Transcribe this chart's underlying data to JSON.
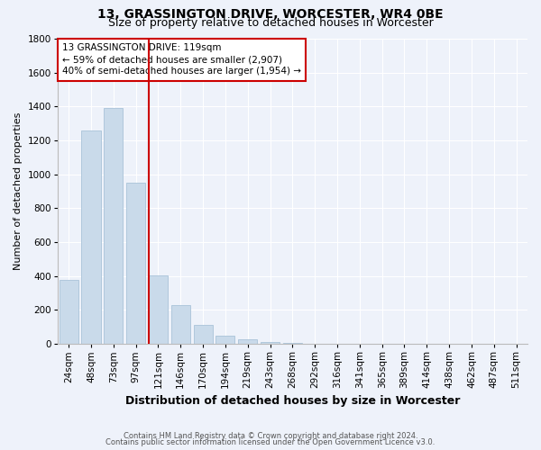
{
  "title": "13, GRASSINGTON DRIVE, WORCESTER, WR4 0BE",
  "subtitle": "Size of property relative to detached houses in Worcester",
  "xlabel": "Distribution of detached houses by size in Worcester",
  "ylabel": "Number of detached properties",
  "footnote1": "Contains HM Land Registry data © Crown copyright and database right 2024.",
  "footnote2": "Contains public sector information licensed under the Open Government Licence v3.0.",
  "categories": [
    "24sqm",
    "48sqm",
    "73sqm",
    "97sqm",
    "121sqm",
    "146sqm",
    "170sqm",
    "194sqm",
    "219sqm",
    "243sqm",
    "268sqm",
    "292sqm",
    "316sqm",
    "341sqm",
    "365sqm",
    "389sqm",
    "414sqm",
    "438sqm",
    "462sqm",
    "487sqm",
    "511sqm"
  ],
  "values": [
    375,
    1260,
    1390,
    950,
    405,
    230,
    110,
    50,
    25,
    10,
    5,
    2,
    1,
    1,
    0,
    0,
    0,
    0,
    0,
    0,
    0
  ],
  "bar_color": "#c9daea",
  "bar_edge_color": "#b0c8dc",
  "marker_label": "13 GRASSINGTON DRIVE: 119sqm",
  "annotation_line1": "← 59% of detached houses are smaller (2,907)",
  "annotation_line2": "40% of semi-detached houses are larger (1,954) →",
  "annotation_box_color": "#cc0000",
  "marker_line_color": "#cc0000",
  "ylim": [
    0,
    1800
  ],
  "yticks": [
    0,
    200,
    400,
    600,
    800,
    1000,
    1200,
    1400,
    1600,
    1800
  ],
  "bg_color": "#eef2fa",
  "title_fontsize": 10,
  "subtitle_fontsize": 9,
  "xlabel_fontsize": 9,
  "ylabel_fontsize": 8,
  "tick_fontsize": 7.5,
  "footnote_fontsize": 6,
  "annot_fontsize": 7.5
}
